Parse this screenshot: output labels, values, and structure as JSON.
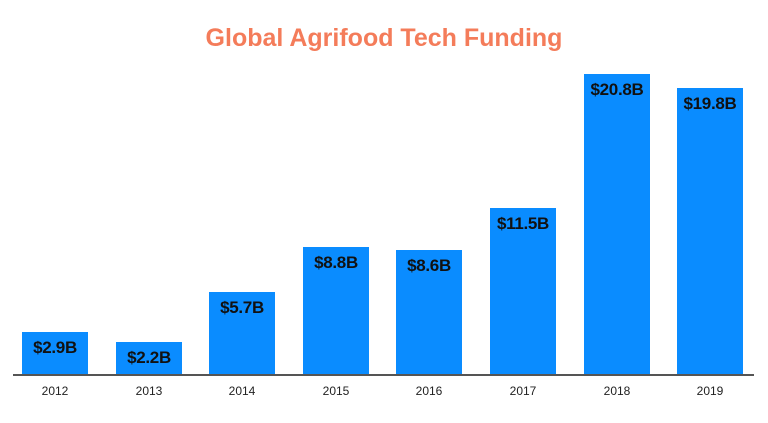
{
  "chart_data": {
    "type": "bar",
    "title": "Global Agrifood Tech Funding",
    "xlabel": "",
    "ylabel": "",
    "categories": [
      "2012",
      "2013",
      "2014",
      "2015",
      "2016",
      "2017",
      "2018",
      "2019"
    ],
    "values": [
      2.9,
      2.2,
      5.7,
      8.8,
      8.6,
      11.5,
      20.8,
      19.8
    ],
    "value_labels": [
      "$2.9B",
      "$2.2B",
      "$5.7B",
      "$8.8B",
      "$8.6B",
      "$11.5B",
      "$20.8B",
      "$19.8B"
    ],
    "unit": "USD billions",
    "ylim": [
      0,
      21
    ],
    "grid": false,
    "legend": null,
    "colors": {
      "bar": "#0a8cff",
      "title": "#f47c5a",
      "axis": "#555555"
    }
  }
}
